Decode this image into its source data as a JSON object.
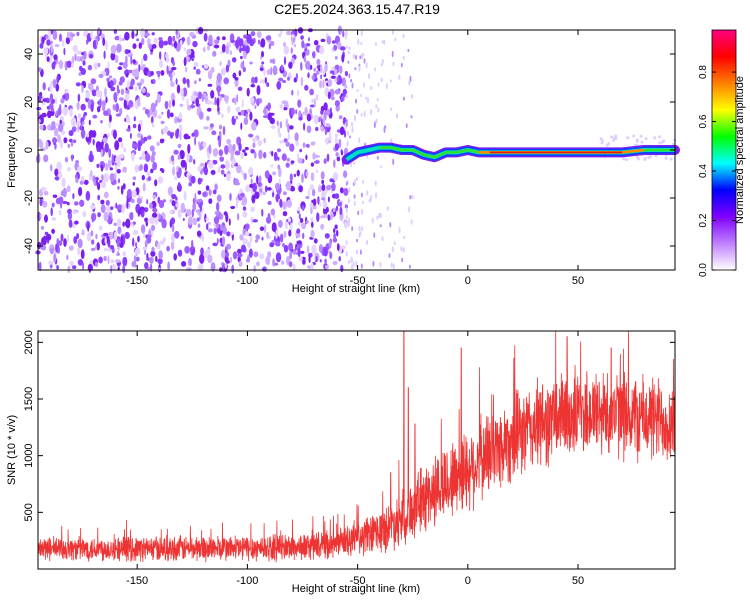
{
  "title": "C2E5.2024.363.15.47.R19",
  "chart_data": [
    {
      "type": "heatmap",
      "xlabel": "Height of straight line (km)",
      "ylabel": "Frequency (Hz)",
      "xlim": [
        -195,
        94
      ],
      "ylim": [
        -50,
        50
      ],
      "x_ticks": [
        -150,
        -100,
        -50,
        0,
        50
      ],
      "y_ticks": [
        -40,
        -20,
        0,
        20,
        40
      ],
      "x_tick_labels": [
        "-150",
        "-100",
        "-50",
        "0",
        "50"
      ],
      "y_tick_labels": [
        "-40",
        "-20",
        "0",
        "20",
        "40"
      ],
      "colorbar": {
        "label": "Normalized spectral amplitude",
        "range": [
          0,
          0.97
        ],
        "ticks": [
          0.0,
          0.2,
          0.4,
          0.6,
          0.8
        ],
        "tick_labels": [
          "0.0",
          "0.2",
          "0.4",
          "0.6",
          "0.8"
        ],
        "colormap": [
          "#ffffff",
          "#c080ff",
          "#8000ff",
          "#0000ff",
          "#00ffff",
          "#00ff00",
          "#ffff00",
          "#ff8000",
          "#ff0000",
          "#ff0080"
        ]
      },
      "noise_region_x": [
        -195,
        -55
      ],
      "sparse_region_x": [
        -55,
        -25
      ],
      "signal_track": [
        {
          "x": -55,
          "y": -4
        },
        {
          "x": -50,
          "y": -1
        },
        {
          "x": -45,
          "y": 0
        },
        {
          "x": -40,
          "y": 1
        },
        {
          "x": -35,
          "y": 1
        },
        {
          "x": -30,
          "y": 0
        },
        {
          "x": -25,
          "y": 0
        },
        {
          "x": -20,
          "y": -2
        },
        {
          "x": -15,
          "y": -3
        },
        {
          "x": -10,
          "y": -1
        },
        {
          "x": -5,
          "y": -1
        },
        {
          "x": 0,
          "y": 0
        },
        {
          "x": 5,
          "y": -1
        },
        {
          "x": 10,
          "y": -1
        },
        {
          "x": 20,
          "y": -1
        },
        {
          "x": 30,
          "y": -1
        },
        {
          "x": 40,
          "y": -1
        },
        {
          "x": 50,
          "y": -1
        },
        {
          "x": 60,
          "y": -1
        },
        {
          "x": 70,
          "y": -1
        },
        {
          "x": 80,
          "y": 0
        },
        {
          "x": 94,
          "y": 0
        }
      ]
    },
    {
      "type": "line",
      "xlabel": "Height of straight line (km)",
      "ylabel": "SNR (10 * v/v)",
      "xlim": [
        -195,
        94
      ],
      "ylim": [
        0,
        2100
      ],
      "x_ticks": [
        -150,
        -100,
        -50,
        0,
        50
      ],
      "y_ticks": [
        500,
        1000,
        1500,
        2000
      ],
      "x_tick_labels": [
        "-150",
        "-100",
        "-50",
        "0",
        "50"
      ],
      "y_tick_labels": [
        "500",
        "1000",
        "1500",
        "2000"
      ],
      "series": [
        {
          "color": "#ee3333",
          "baseline": [
            {
              "x": -195,
              "y": 180
            },
            {
              "x": -150,
              "y": 180
            },
            {
              "x": -100,
              "y": 185
            },
            {
              "x": -75,
              "y": 195
            },
            {
              "x": -60,
              "y": 220
            },
            {
              "x": -50,
              "y": 260
            },
            {
              "x": -40,
              "y": 330
            },
            {
              "x": -30,
              "y": 450
            },
            {
              "x": -20,
              "y": 620
            },
            {
              "x": -10,
              "y": 760
            },
            {
              "x": 0,
              "y": 880
            },
            {
              "x": 10,
              "y": 1020
            },
            {
              "x": 20,
              "y": 1150
            },
            {
              "x": 30,
              "y": 1250
            },
            {
              "x": 40,
              "y": 1330
            },
            {
              "x": 50,
              "y": 1380
            },
            {
              "x": 60,
              "y": 1380
            },
            {
              "x": 70,
              "y": 1360
            },
            {
              "x": 80,
              "y": 1330
            },
            {
              "x": 94,
              "y": 1300
            }
          ],
          "spread": [
            {
              "x": -195,
              "y": 120
            },
            {
              "x": -60,
              "y": 140
            },
            {
              "x": -40,
              "y": 220
            },
            {
              "x": -20,
              "y": 350
            },
            {
              "x": 0,
              "y": 420
            },
            {
              "x": 30,
              "y": 450
            },
            {
              "x": 94,
              "y": 430
            }
          ],
          "spikes": [
            {
              "x": -29,
              "y": 2120
            },
            {
              "x": -27,
              "y": 1600
            },
            {
              "x": -24,
              "y": 1280
            },
            {
              "x": -3,
              "y": 1950
            },
            {
              "x": -35,
              "y": 850
            },
            {
              "x": 45,
              "y": 2050
            },
            {
              "x": 65,
              "y": 1950
            }
          ]
        }
      ]
    }
  ]
}
